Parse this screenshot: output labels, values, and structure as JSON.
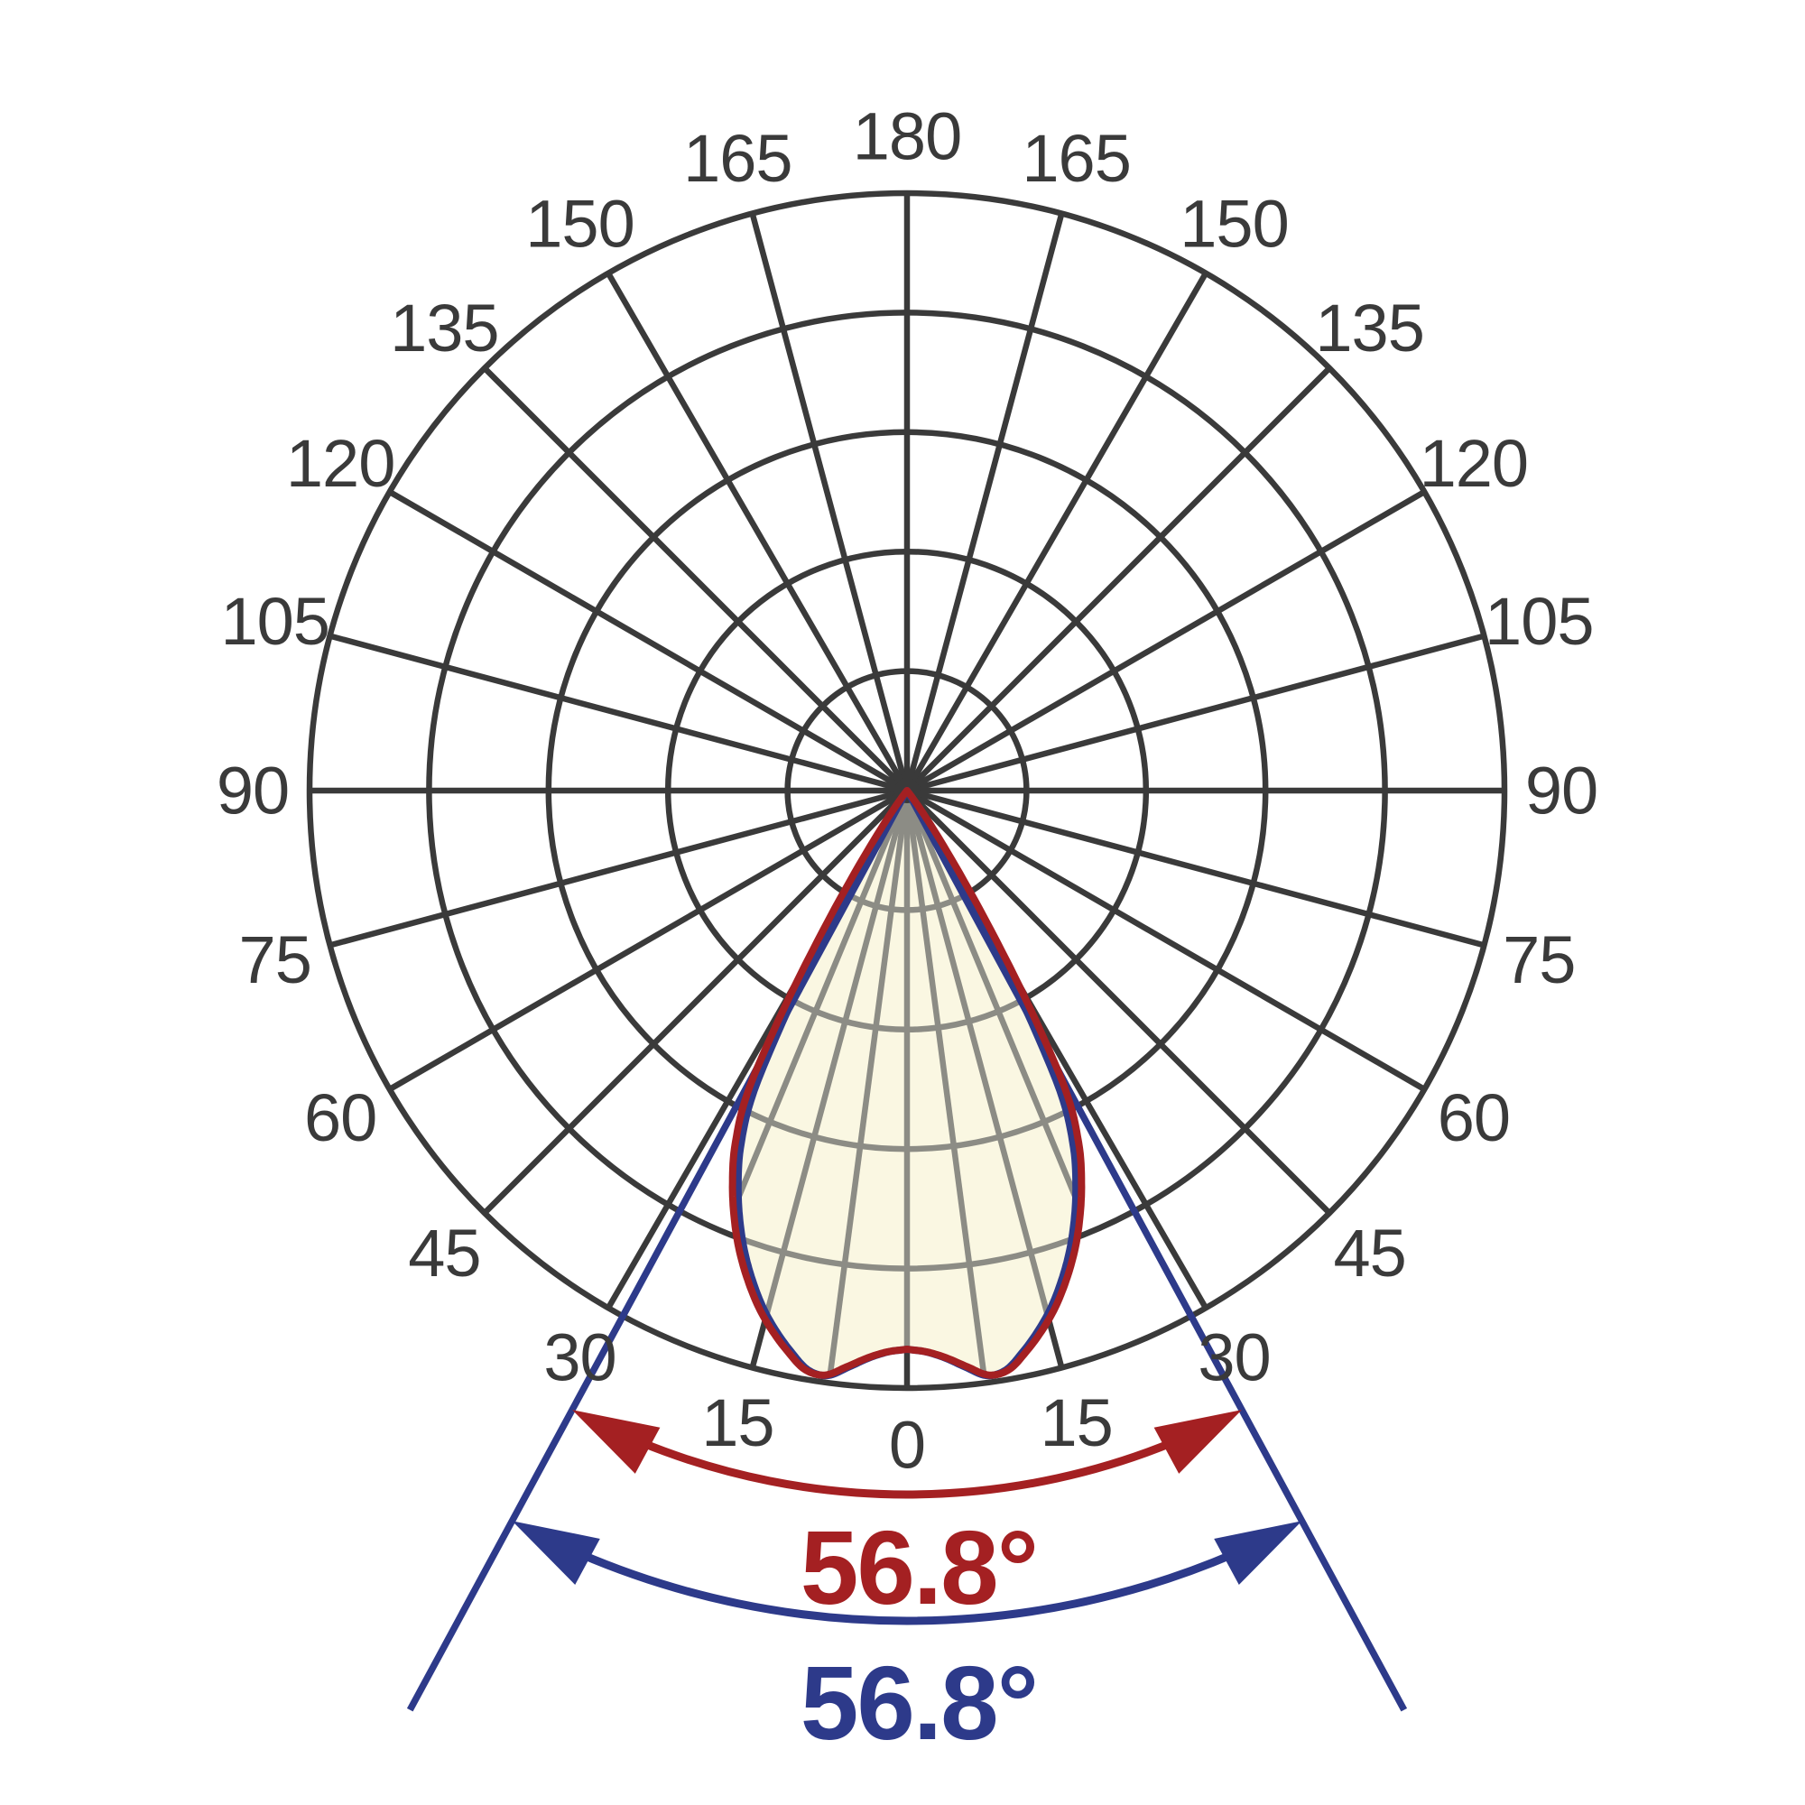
{
  "page": {
    "background_color": "#FFFFFF"
  },
  "chart_data": {
    "type": "polar",
    "variant": "photometric-luminous-intensity-distribution",
    "grid": {
      "rings": 5,
      "spoke_step_deg": 15,
      "inner_spoke_step_deg": 7.5,
      "grid_color": "#3A3A3A",
      "inner_grid_color": "#8C8C85",
      "label_color": "#3A3A3A",
      "grid_on": true,
      "angle_range_deg": [
        0,
        180
      ],
      "zero_direction": "down"
    },
    "angle_tick_labels": [
      "0",
      "15",
      "30",
      "45",
      "60",
      "75",
      "90",
      "105",
      "120",
      "135",
      "150",
      "165",
      "180"
    ],
    "beam_fill_color": "#FAF7E2",
    "series": [
      {
        "name": "red-beam-plane",
        "color": "#A42022",
        "beam_angle_deg": 56.8,
        "beam_angle_label": "56.8°",
        "curve_deg_vs_relative_intensity": [
          [
            0,
            0.935
          ],
          [
            2,
            0.94
          ],
          [
            4,
            0.952
          ],
          [
            6,
            0.97
          ],
          [
            8,
            0.988
          ],
          [
            10,
            0.984
          ],
          [
            12,
            0.96
          ],
          [
            14,
            0.932
          ],
          [
            16,
            0.9
          ],
          [
            18,
            0.862
          ],
          [
            20,
            0.82
          ],
          [
            22,
            0.772
          ],
          [
            24,
            0.718
          ],
          [
            26,
            0.655
          ],
          [
            28,
            0.56
          ],
          [
            29,
            0.465
          ],
          [
            30,
            0.365
          ],
          [
            31,
            0.272
          ],
          [
            32,
            0.195
          ],
          [
            33,
            0.135
          ],
          [
            34,
            0.09
          ],
          [
            35,
            0.057
          ],
          [
            36,
            0.032
          ],
          [
            37,
            0.015
          ],
          [
            38,
            0.004
          ],
          [
            39,
            0.0
          ]
        ]
      },
      {
        "name": "blue-beam-plane",
        "color": "#2D3A8A",
        "beam_angle_deg": 56.8,
        "beam_angle_label": "56.8°",
        "curve_angle_scale_relative_to_red": 1.035
      }
    ]
  }
}
